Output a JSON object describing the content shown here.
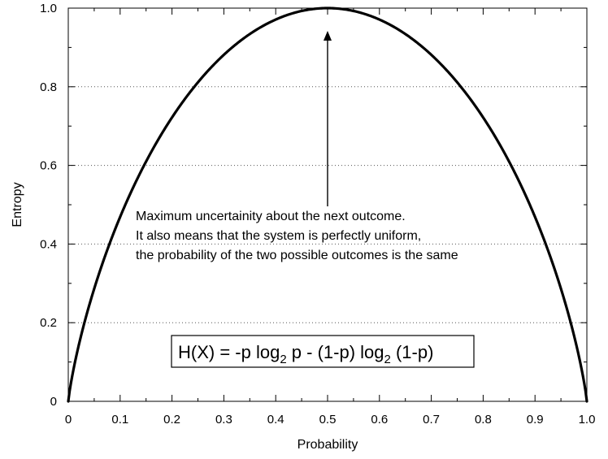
{
  "chart_data": {
    "type": "line",
    "title": "",
    "xlabel": "Probability",
    "ylabel": "Entropy",
    "xlim": [
      0,
      1
    ],
    "ylim": [
      0,
      1
    ],
    "x_ticks": [
      "0",
      "0.1",
      "0.2",
      "0.3",
      "0.4",
      "0.5",
      "0.6",
      "0.7",
      "0.8",
      "0.9",
      "1.0"
    ],
    "y_ticks": [
      "0",
      "0.2",
      "0.4",
      "0.6",
      "0.8",
      "1.0"
    ],
    "grid": "horizontal dotted",
    "series": [
      {
        "function": "H(p) = -p log2 p - (1-p) log2 (1-p)",
        "x": [
          0,
          0.01,
          0.02,
          0.05,
          0.1,
          0.15,
          0.2,
          0.25,
          0.3,
          0.35,
          0.4,
          0.45,
          0.5,
          0.55,
          0.6,
          0.65,
          0.7,
          0.75,
          0.8,
          0.85,
          0.9,
          0.95,
          0.98,
          0.99,
          1
        ],
        "y": [
          0,
          0.081,
          0.141,
          0.286,
          0.469,
          0.61,
          0.722,
          0.811,
          0.881,
          0.934,
          0.971,
          0.993,
          1.0,
          0.993,
          0.971,
          0.934,
          0.881,
          0.811,
          0.722,
          0.61,
          0.469,
          0.286,
          0.141,
          0.081,
          0
        ]
      }
    ],
    "annotation": {
      "points_to": {
        "x": 0.5,
        "y": 1.0
      },
      "lines": [
        "Maximum uncertainity about the next outcome.",
        "It also means that the system is perfectly uniform,",
        "the probability of the two possible outcomes is the same"
      ]
    },
    "formula": {
      "prefix": "H(X) = -p log",
      "sub1": "2",
      "middle": " p - (1-p) log",
      "sub2": "2",
      "suffix": " (1-p)"
    }
  }
}
